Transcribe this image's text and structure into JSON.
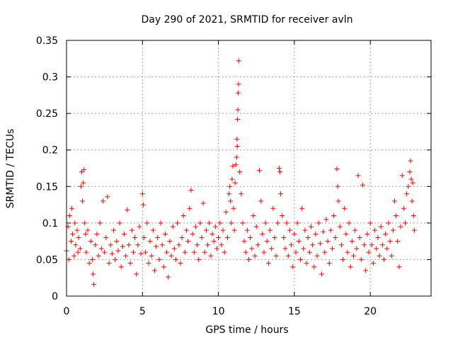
{
  "chart_data": {
    "type": "scatter",
    "title": "Day 290 of 2021, SRMTID for receiver avln",
    "xlabel": "GPS time / hours",
    "ylabel": "SRMTID / TECUs",
    "xlim": [
      0,
      24
    ],
    "ylim": [
      0,
      0.35
    ],
    "xticks": [
      0,
      5,
      10,
      15,
      20
    ],
    "xtick_labels": [
      "0",
      "5",
      "10",
      "15",
      "20"
    ],
    "yticks": [
      0,
      0.05,
      0.1,
      0.15,
      0.2,
      0.25,
      0.3,
      0.35
    ],
    "ytick_labels": [
      "0",
      "0.05",
      "0.1",
      "0.15",
      "0.2",
      "0.25",
      "0.3",
      "0.35"
    ],
    "grid": true,
    "marker": "+",
    "color": "#ff0000",
    "series": [
      {
        "name": "SRMTID",
        "points": [
          [
            0.0,
            0.062
          ],
          [
            0.1,
            0.095
          ],
          [
            0.15,
            0.05
          ],
          [
            0.2,
            0.11
          ],
          [
            0.3,
            0.075
          ],
          [
            0.35,
            0.12
          ],
          [
            0.4,
            0.085
          ],
          [
            0.5,
            0.055
          ],
          [
            0.55,
            0.1
          ],
          [
            0.6,
            0.07
          ],
          [
            0.7,
            0.09
          ],
          [
            0.75,
            0.06
          ],
          [
            0.8,
            0.08
          ],
          [
            0.9,
            0.065
          ],
          [
            0.95,
            0.15
          ],
          [
            1.0,
            0.17
          ],
          [
            1.05,
            0.13
          ],
          [
            1.1,
            0.155
          ],
          [
            1.15,
            0.173
          ],
          [
            1.2,
            0.1
          ],
          [
            1.25,
            0.085
          ],
          [
            1.3,
            0.06
          ],
          [
            1.4,
            0.09
          ],
          [
            1.5,
            0.045
          ],
          [
            1.6,
            0.075
          ],
          [
            1.7,
            0.05
          ],
          [
            1.75,
            0.03
          ],
          [
            1.8,
            0.016
          ],
          [
            1.9,
            0.07
          ],
          [
            2.0,
            0.085
          ],
          [
            2.1,
            0.055
          ],
          [
            2.2,
            0.1
          ],
          [
            2.3,
            0.065
          ],
          [
            2.4,
            0.13
          ],
          [
            2.5,
            0.06
          ],
          [
            2.6,
            0.08
          ],
          [
            2.7,
            0.136
          ],
          [
            2.8,
            0.045
          ],
          [
            2.9,
            0.07
          ],
          [
            3.0,
            0.058
          ],
          [
            3.1,
            0.09
          ],
          [
            3.2,
            0.05
          ],
          [
            3.3,
            0.075
          ],
          [
            3.4,
            0.062
          ],
          [
            3.5,
            0.1
          ],
          [
            3.6,
            0.04
          ],
          [
            3.7,
            0.068
          ],
          [
            3.8,
            0.085
          ],
          [
            3.9,
            0.055
          ],
          [
            4.0,
            0.118
          ],
          [
            4.1,
            0.07
          ],
          [
            4.2,
            0.045
          ],
          [
            4.3,
            0.09
          ],
          [
            4.4,
            0.06
          ],
          [
            4.5,
            0.08
          ],
          [
            4.6,
            0.03
          ],
          [
            4.7,
            0.07
          ],
          [
            4.8,
            0.095
          ],
          [
            4.9,
            0.058
          ],
          [
            5.0,
            0.14
          ],
          [
            5.05,
            0.125
          ],
          [
            5.1,
            0.08
          ],
          [
            5.2,
            0.06
          ],
          [
            5.3,
            0.1
          ],
          [
            5.4,
            0.045
          ],
          [
            5.5,
            0.075
          ],
          [
            5.6,
            0.055
          ],
          [
            5.7,
            0.09
          ],
          [
            5.8,
            0.035
          ],
          [
            5.9,
            0.068
          ],
          [
            6.0,
            0.08
          ],
          [
            6.1,
            0.05
          ],
          [
            6.2,
            0.1
          ],
          [
            6.3,
            0.07
          ],
          [
            6.4,
            0.04
          ],
          [
            6.5,
            0.085
          ],
          [
            6.6,
            0.06
          ],
          [
            6.7,
            0.026
          ],
          [
            6.8,
            0.075
          ],
          [
            6.9,
            0.055
          ],
          [
            7.0,
            0.095
          ],
          [
            7.1,
            0.065
          ],
          [
            7.2,
            0.05
          ],
          [
            7.3,
            0.1
          ],
          [
            7.4,
            0.07
          ],
          [
            7.5,
            0.045
          ],
          [
            7.6,
            0.08
          ],
          [
            7.7,
            0.11
          ],
          [
            7.8,
            0.06
          ],
          [
            7.9,
            0.09
          ],
          [
            8.0,
            0.075
          ],
          [
            8.1,
            0.12
          ],
          [
            8.2,
            0.145
          ],
          [
            8.3,
            0.085
          ],
          [
            8.4,
            0.06
          ],
          [
            8.5,
            0.095
          ],
          [
            8.6,
            0.07
          ],
          [
            8.7,
            0.05
          ],
          [
            8.8,
            0.1
          ],
          [
            8.9,
            0.08
          ],
          [
            9.0,
            0.127
          ],
          [
            9.1,
            0.06
          ],
          [
            9.2,
            0.09
          ],
          [
            9.3,
            0.07
          ],
          [
            9.4,
            0.1
          ],
          [
            9.5,
            0.055
          ],
          [
            9.6,
            0.085
          ],
          [
            9.7,
            0.075
          ],
          [
            9.8,
            0.095
          ],
          [
            9.9,
            0.065
          ],
          [
            10.0,
            0.08
          ],
          [
            10.1,
            0.1
          ],
          [
            10.2,
            0.07
          ],
          [
            10.3,
            0.09
          ],
          [
            10.4,
            0.06
          ],
          [
            10.5,
            0.115
          ],
          [
            10.6,
            0.08
          ],
          [
            10.7,
            0.14
          ],
          [
            10.75,
            0.15
          ],
          [
            10.8,
            0.13
          ],
          [
            10.85,
            0.1
          ],
          [
            10.9,
            0.16
          ],
          [
            10.95,
            0.178
          ],
          [
            11.0,
            0.12
          ],
          [
            11.05,
            0.09
          ],
          [
            11.1,
            0.155
          ],
          [
            11.15,
            0.18
          ],
          [
            11.2,
            0.19
          ],
          [
            11.22,
            0.215
          ],
          [
            11.24,
            0.205
          ],
          [
            11.26,
            0.242
          ],
          [
            11.28,
            0.255
          ],
          [
            11.3,
            0.278
          ],
          [
            11.32,
            0.29
          ],
          [
            11.34,
            0.322
          ],
          [
            11.4,
            0.17
          ],
          [
            11.5,
            0.14
          ],
          [
            11.6,
            0.1
          ],
          [
            11.7,
            0.075
          ],
          [
            11.8,
            0.06
          ],
          [
            11.9,
            0.09
          ],
          [
            12.0,
            0.05
          ],
          [
            12.1,
            0.08
          ],
          [
            12.2,
            0.065
          ],
          [
            12.3,
            0.11
          ],
          [
            12.4,
            0.055
          ],
          [
            12.5,
            0.095
          ],
          [
            12.6,
            0.07
          ],
          [
            12.7,
            0.172
          ],
          [
            12.8,
            0.13
          ],
          [
            12.9,
            0.085
          ],
          [
            13.0,
            0.06
          ],
          [
            13.1,
            0.1
          ],
          [
            13.2,
            0.075
          ],
          [
            13.3,
            0.045
          ],
          [
            13.4,
            0.09
          ],
          [
            13.5,
            0.065
          ],
          [
            13.6,
            0.12
          ],
          [
            13.7,
            0.08
          ],
          [
            13.8,
            0.055
          ],
          [
            13.9,
            0.1
          ],
          [
            14.0,
            0.175
          ],
          [
            14.05,
            0.17
          ],
          [
            14.1,
            0.14
          ],
          [
            14.2,
            0.11
          ],
          [
            14.3,
            0.08
          ],
          [
            14.4,
            0.065
          ],
          [
            14.5,
            0.1
          ],
          [
            14.6,
            0.055
          ],
          [
            14.7,
            0.09
          ],
          [
            14.8,
            0.07
          ],
          [
            14.9,
            0.04
          ],
          [
            15.0,
            0.085
          ],
          [
            15.1,
            0.06
          ],
          [
            15.2,
            0.1
          ],
          [
            15.3,
            0.075
          ],
          [
            15.4,
            0.05
          ],
          [
            15.5,
            0.12
          ],
          [
            15.6,
            0.065
          ],
          [
            15.7,
            0.09
          ],
          [
            15.8,
            0.045
          ],
          [
            15.9,
            0.08
          ],
          [
            16.0,
            0.06
          ],
          [
            16.1,
            0.095
          ],
          [
            16.2,
            0.07
          ],
          [
            16.3,
            0.04
          ],
          [
            16.4,
            0.085
          ],
          [
            16.5,
            0.055
          ],
          [
            16.6,
            0.1
          ],
          [
            16.7,
            0.072
          ],
          [
            16.8,
            0.03
          ],
          [
            16.9,
            0.088
          ],
          [
            17.0,
            0.06
          ],
          [
            17.1,
            0.105
          ],
          [
            17.2,
            0.075
          ],
          [
            17.3,
            0.045
          ],
          [
            17.4,
            0.09
          ],
          [
            17.5,
            0.065
          ],
          [
            17.6,
            0.11
          ],
          [
            17.7,
            0.08
          ],
          [
            17.8,
            0.174
          ],
          [
            17.85,
            0.15
          ],
          [
            17.9,
            0.13
          ],
          [
            18.0,
            0.095
          ],
          [
            18.1,
            0.07
          ],
          [
            18.2,
            0.05
          ],
          [
            18.3,
            0.12
          ],
          [
            18.4,
            0.085
          ],
          [
            18.5,
            0.06
          ],
          [
            18.6,
            0.1
          ],
          [
            18.7,
            0.04
          ],
          [
            18.8,
            0.075
          ],
          [
            18.9,
            0.055
          ],
          [
            19.0,
            0.09
          ],
          [
            19.1,
            0.065
          ],
          [
            19.2,
            0.165
          ],
          [
            19.3,
            0.08
          ],
          [
            19.4,
            0.05
          ],
          [
            19.5,
            0.152
          ],
          [
            19.6,
            0.07
          ],
          [
            19.7,
            0.035
          ],
          [
            19.8,
            0.085
          ],
          [
            19.9,
            0.06
          ],
          [
            20.0,
            0.1
          ],
          [
            20.1,
            0.07
          ],
          [
            20.2,
            0.045
          ],
          [
            20.3,
            0.09
          ],
          [
            20.4,
            0.065
          ],
          [
            20.5,
            0.08
          ],
          [
            20.6,
            0.055
          ],
          [
            20.7,
            0.095
          ],
          [
            20.8,
            0.07
          ],
          [
            20.9,
            0.05
          ],
          [
            21.0,
            0.085
          ],
          [
            21.1,
            0.065
          ],
          [
            21.2,
            0.1
          ],
          [
            21.3,
            0.075
          ],
          [
            21.4,
            0.055
          ],
          [
            21.5,
            0.09
          ],
          [
            21.6,
            0.13
          ],
          [
            21.7,
            0.11
          ],
          [
            21.8,
            0.075
          ],
          [
            21.9,
            0.04
          ],
          [
            22.0,
            0.095
          ],
          [
            22.1,
            0.165
          ],
          [
            22.2,
            0.12
          ],
          [
            22.3,
            0.1
          ],
          [
            22.4,
            0.14
          ],
          [
            22.5,
            0.15
          ],
          [
            22.6,
            0.17
          ],
          [
            22.65,
            0.185
          ],
          [
            22.7,
            0.16
          ],
          [
            22.75,
            0.13
          ],
          [
            22.8,
            0.155
          ],
          [
            22.85,
            0.11
          ],
          [
            22.9,
            0.09
          ]
        ]
      }
    ]
  }
}
